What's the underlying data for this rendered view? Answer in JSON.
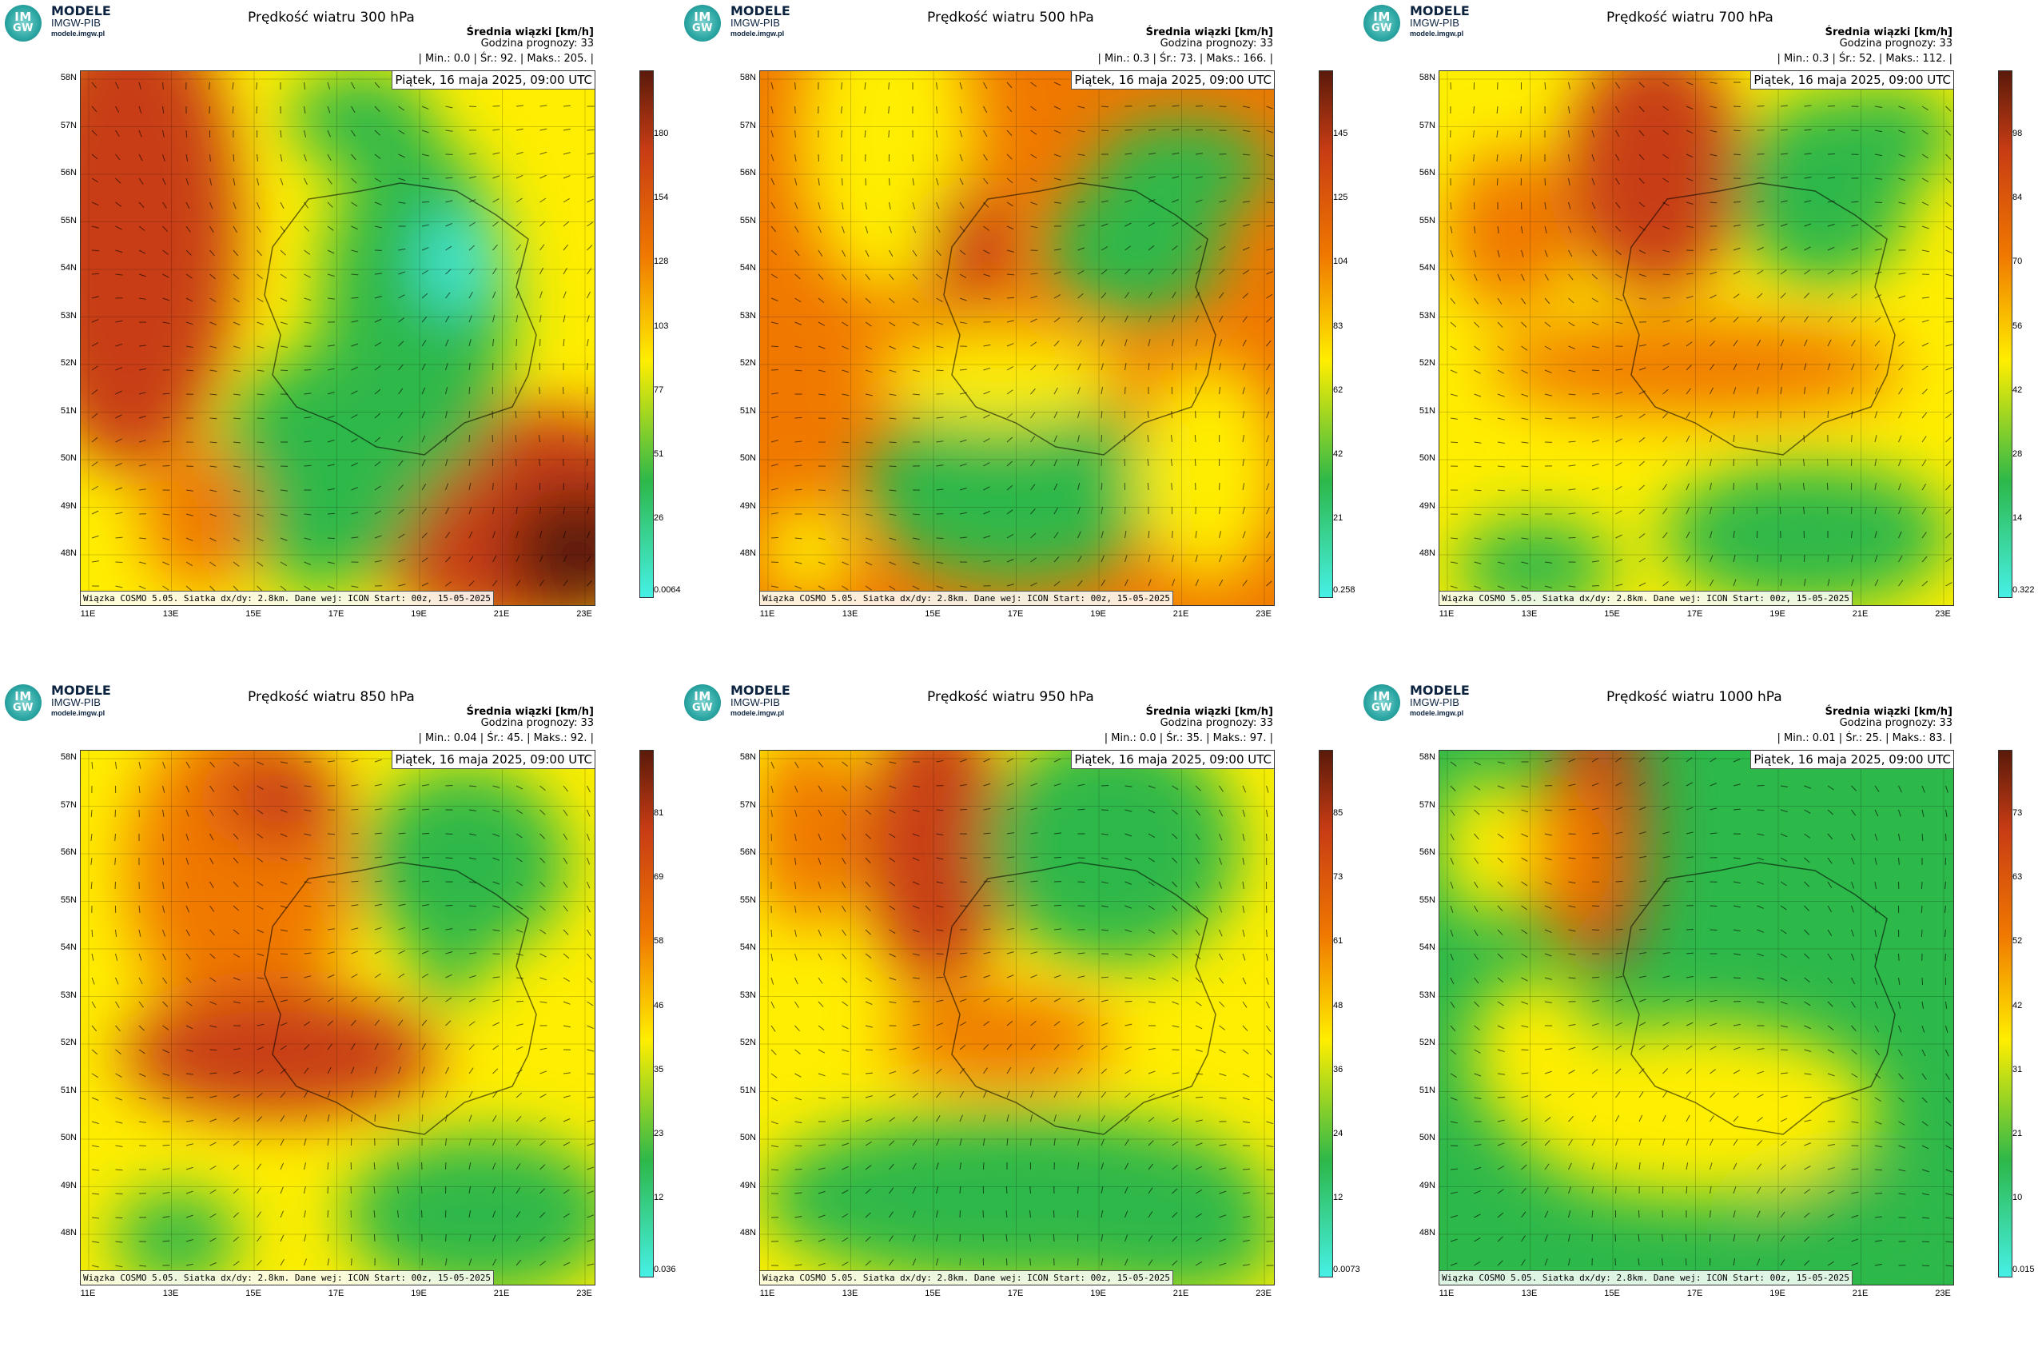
{
  "brand": {
    "name": "MODELE",
    "org": "IMGW-PIB",
    "url": "modele.imgw.pl",
    "logo_top": "IM",
    "logo_bottom": "GW"
  },
  "header_line1": "Średnia wiązki [km/h]",
  "date_label": "Piątek, 16 maja 2025, 09:00 UTC",
  "footer": "Wiązka COSMO 5.05. Siatka dx/dy: 2.8km. Dane wej: ICON Start: 00z, 15-05-2025",
  "lat_labels": [
    "58N",
    "57N",
    "56N",
    "55N",
    "54N",
    "53N",
    "52N",
    "51N",
    "50N",
    "49N",
    "48N"
  ],
  "lon_labels": [
    "11E",
    "13E",
    "15E",
    "17E",
    "19E",
    "21E",
    "23E"
  ],
  "colors": {
    "low": "#46f0e6",
    "green": "#2db84a",
    "yellow": "#ffee00",
    "orange": "#f07800",
    "red": "#c83c14",
    "dark": "#5a1a0a"
  },
  "panels": [
    {
      "title": "Prędkość wiatru 300 hPa",
      "forecast": "Godzina prognozy: 33",
      "stats": "| Min.:    0.0 | Śr.:    92. | Maks.:   205. |",
      "scale": [
        "180",
        "154",
        "128",
        "103",
        "77",
        "51",
        "26",
        "0.0064"
      ],
      "style": "p300"
    },
    {
      "title": "Prędkość wiatru 500 hPa",
      "forecast": "Godzina prognozy: 33",
      "stats": "| Min.:    0.3 | Śr.:    73. | Maks.:   166. |",
      "scale": [
        "145",
        "125",
        "104",
        "83",
        "62",
        "42",
        "21",
        "0.258"
      ],
      "style": "p500"
    },
    {
      "title": "Prędkość wiatru 700 hPa",
      "forecast": "Godzina prognozy: 33",
      "stats": "| Min.:    0.3 | Śr.:    52. | Maks.:   112. |",
      "scale": [
        "98",
        "84",
        "70",
        "56",
        "42",
        "28",
        "14",
        "0.322"
      ],
      "style": "p700"
    },
    {
      "title": "Prędkość wiatru 850 hPa",
      "forecast": "Godzina prognozy: 33",
      "stats": "| Min.:   0.04 | Śr.:    45. | Maks.:    92. |",
      "scale": [
        "81",
        "69",
        "58",
        "46",
        "35",
        "23",
        "12",
        "0.036"
      ],
      "style": "p850"
    },
    {
      "title": "Prędkość wiatru 950 hPa",
      "forecast": "Godzina prognozy: 33",
      "stats": "| Min.:    0.0 | Śr.:    35. | Maks.:    97. |",
      "scale": [
        "85",
        "73",
        "61",
        "48",
        "36",
        "24",
        "12",
        "0.0073"
      ],
      "style": "p950"
    },
    {
      "title": "Prędkość wiatru 1000 hPa",
      "forecast": "Godzina prognozy: 33",
      "stats": "| Min.:   0.01 | Śr.:    25. | Maks.:    83. |",
      "scale": [
        "73",
        "63",
        "52",
        "42",
        "31",
        "21",
        "10",
        "0.015"
      ],
      "style": "p1000"
    }
  ]
}
